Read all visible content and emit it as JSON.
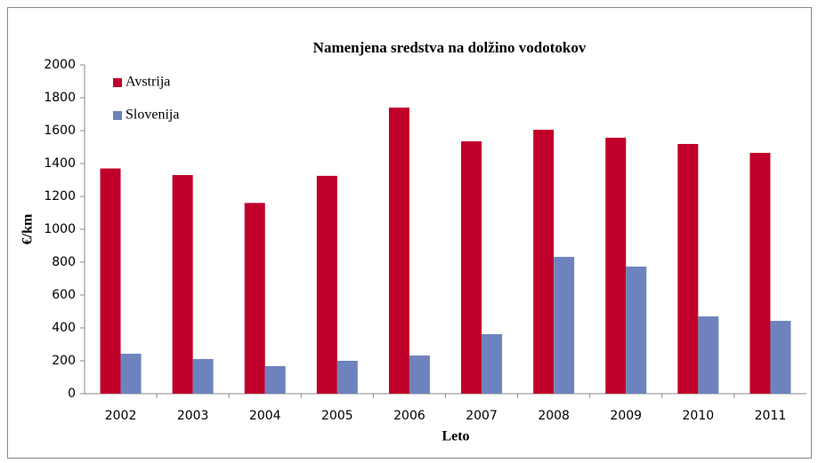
{
  "chart_data": {
    "type": "bar",
    "title": "Namenjena sredstva na dolžino vodotokov",
    "xlabel": "Leto",
    "ylabel": "€/km",
    "categories": [
      "2002",
      "2003",
      "2004",
      "2005",
      "2006",
      "2007",
      "2008",
      "2009",
      "2010",
      "2011"
    ],
    "series": [
      {
        "name": "Avstrija",
        "color": "#c0002a",
        "values": [
          1370,
          1330,
          1160,
          1325,
          1740,
          1535,
          1605,
          1557,
          1519,
          1465
        ]
      },
      {
        "name": "Slovenija",
        "color": "#6e83bd",
        "values": [
          243,
          211,
          168,
          200,
          232,
          362,
          832,
          773,
          470,
          443
        ]
      }
    ],
    "ylim": [
      0,
      2000
    ],
    "yticks": [
      0,
      200,
      400,
      600,
      800,
      1000,
      1200,
      1400,
      1600,
      1800,
      2000
    ],
    "grid": false,
    "legend": "top-left"
  }
}
